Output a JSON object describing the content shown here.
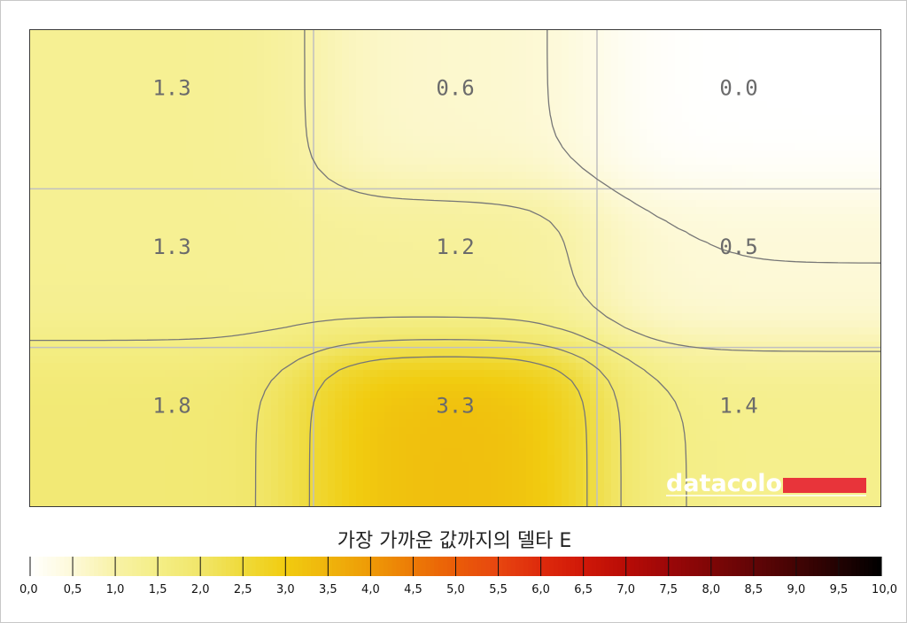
{
  "chart_data": {
    "type": "heatmap",
    "grid": {
      "rows": 3,
      "cols": 3
    },
    "cells": [
      [
        1.3,
        0.6,
        0.0
      ],
      [
        1.3,
        1.2,
        0.5
      ],
      [
        1.8,
        3.3,
        1.4
      ]
    ],
    "cell_labels": [
      [
        "1.3",
        "0.6",
        "0.0"
      ],
      [
        "1.3",
        "1.2",
        "0.5"
      ],
      [
        "1.8",
        "3.3",
        "1.4"
      ]
    ],
    "colorbar": {
      "title": "가장 가까운 값까지의 델타 E",
      "min": 0.0,
      "max": 10.0,
      "step": 0.5,
      "tick_labels": [
        "0,0",
        "0,5",
        "1,0",
        "1,5",
        "2,0",
        "2,5",
        "3,0",
        "3,5",
        "4,0",
        "4,5",
        "5,0",
        "5,5",
        "6,0",
        "6,5",
        "7,0",
        "7,5",
        "8,0",
        "8,5",
        "9,0",
        "9,5",
        "10,0"
      ],
      "colors": [
        "#ffffff",
        "#fdf9d8",
        "#f8f2a6",
        "#f4ee86",
        "#f1e66a",
        "#efda3a",
        "#f1cc10",
        "#efb40c",
        "#ee9a06",
        "#ec7a06",
        "#ea5c08",
        "#e74610",
        "#de2a0c",
        "#d01808",
        "#b80c06",
        "#9c0708",
        "#7e0606",
        "#620506",
        "#430404",
        "#220202",
        "#000000"
      ],
      "grid": true
    },
    "brand": {
      "text": "datacolor",
      "accent_color": "#e8343a"
    }
  }
}
